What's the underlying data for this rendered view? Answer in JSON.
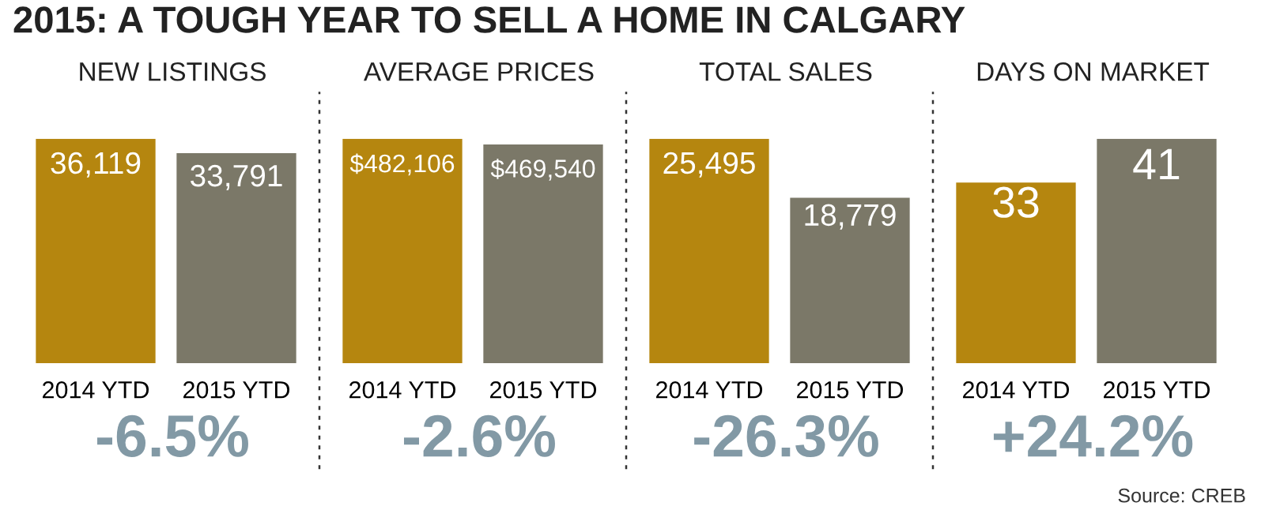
{
  "chart_data": [
    {
      "type": "bar",
      "title": "2015: A TOUGH YEAR TO SELL A HOME IN CALGARY",
      "subtitle": "NEW LISTINGS",
      "categories": [
        "2014 YTD",
        "2015 YTD"
      ],
      "values": [
        36119,
        33791
      ],
      "value_labels": [
        "36,119",
        "33,791"
      ],
      "colors": [
        "#b5860f",
        "#7b7868"
      ],
      "annotations": [
        "-6.5%"
      ]
    },
    {
      "type": "bar",
      "subtitle": "AVERAGE PRICES",
      "categories": [
        "2014 YTD",
        "2015 YTD"
      ],
      "values": [
        482106,
        469540
      ],
      "value_labels": [
        "$482,106",
        "$469,540"
      ],
      "colors": [
        "#b5860f",
        "#7b7868"
      ],
      "annotations": [
        "-2.6%"
      ]
    },
    {
      "type": "bar",
      "subtitle": "TOTAL SALES",
      "categories": [
        "2014 YTD",
        "2015 YTD"
      ],
      "values": [
        25495,
        18779
      ],
      "value_labels": [
        "25,495",
        "18,779"
      ],
      "colors": [
        "#b5860f",
        "#7b7868"
      ],
      "annotations": [
        "-26.3%"
      ]
    },
    {
      "type": "bar",
      "subtitle": "DAYS ON MARKET",
      "categories": [
        "2014 YTD",
        "2015 YTD"
      ],
      "values": [
        33,
        41
      ],
      "value_labels": [
        "33",
        "41"
      ],
      "colors": [
        "#b5860f",
        "#7b7868"
      ],
      "annotations": [
        "+24.2%",
        "Source: CREB"
      ]
    }
  ]
}
